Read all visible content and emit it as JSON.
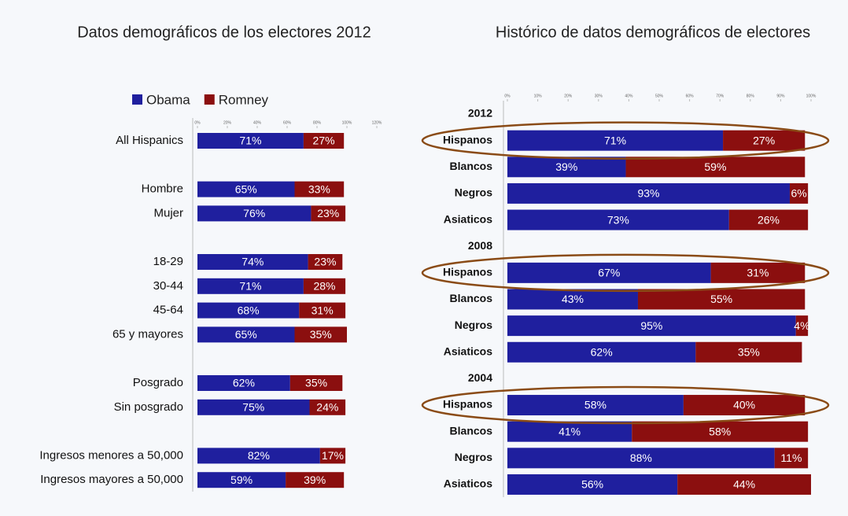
{
  "chart_data": [
    {
      "type": "stacked-barh",
      "title": "Datos demográficos de los electores 2012",
      "categories": [
        "All Hispanics",
        null,
        "Hombre",
        "Mujer",
        null,
        "18-29",
        "30-44",
        "45-64",
        "65 y mayores",
        null,
        "Posgrado",
        "Sin posgrado",
        null,
        "Ingresos menores a 50,000",
        "Ingresos mayores a 50,000"
      ],
      "series": [
        {
          "name": "Obama",
          "color": "#1f1f9e",
          "values": [
            71,
            null,
            65,
            76,
            null,
            74,
            71,
            68,
            65,
            null,
            62,
            75,
            null,
            82,
            59
          ],
          "value_labels": [
            "71%",
            null,
            "65%",
            "76%",
            null,
            "74%",
            "71%",
            "68%",
            "65%",
            null,
            "62%",
            "75%",
            null,
            "82%",
            "59%"
          ]
        },
        {
          "name": "Romney",
          "color": "#8b0f0f",
          "values": [
            27,
            null,
            33,
            23,
            null,
            23,
            28,
            31,
            35,
            null,
            35,
            24,
            null,
            17,
            39
          ],
          "value_labels": [
            "27%",
            null,
            "33%",
            "23%",
            null,
            "23%",
            "28%",
            "31%",
            "35%",
            null,
            "35%",
            "24%",
            null,
            "17%",
            "39%"
          ]
        }
      ],
      "xlim": [
        0,
        120
      ],
      "xticks": [
        {
          "value": 0,
          "label": "0%"
        },
        {
          "value": 20,
          "label": "20%"
        },
        {
          "value": 40,
          "label": "40%"
        },
        {
          "value": 60,
          "label": "60%"
        },
        {
          "value": 80,
          "label": "80%"
        },
        {
          "value": 100,
          "label": "100%"
        },
        {
          "value": 120,
          "label": "120%"
        }
      ],
      "legend": "top"
    },
    {
      "type": "stacked-barh",
      "title": "Histórico de datos demográficos de electores",
      "categories": [
        "2012",
        "Hispanos",
        "Blancos",
        "Negros",
        "Asiaticos",
        "2008",
        "Hispanos",
        "Blancos",
        "Negros",
        "Asiaticos",
        "2004",
        "Hispanos",
        "Blancos",
        "Negros",
        "Asiaticos"
      ],
      "series": [
        {
          "color": "#1f1f9e",
          "values": [
            null,
            71,
            39,
            93,
            73,
            null,
            67,
            43,
            95,
            62,
            null,
            58,
            41,
            88,
            56
          ],
          "value_labels": [
            null,
            "71%",
            "39%",
            "93%",
            "73%",
            null,
            "67%",
            "43%",
            "95%",
            "62%",
            null,
            "58%",
            "41%",
            "88%",
            "56%"
          ]
        },
        {
          "color": "#8b0f0f",
          "values": [
            null,
            27,
            59,
            6,
            26,
            null,
            31,
            55,
            4,
            35,
            null,
            40,
            58,
            11,
            44
          ],
          "value_labels": [
            null,
            "27%",
            "59%",
            "6%",
            "26%",
            null,
            "31%",
            "55%",
            "4%",
            "35%",
            null,
            "40%",
            "58%",
            "11%",
            "44%"
          ]
        }
      ],
      "xlim": [
        0,
        100
      ],
      "xticks": [
        {
          "value": 0,
          "label": "0%"
        },
        {
          "value": 10,
          "label": "10%"
        },
        {
          "value": 20,
          "label": "20%"
        },
        {
          "value": 30,
          "label": "30%"
        },
        {
          "value": 40,
          "label": "40%"
        },
        {
          "value": 50,
          "label": "50%"
        },
        {
          "value": 60,
          "label": "60%"
        },
        {
          "value": 70,
          "label": "70%"
        },
        {
          "value": 80,
          "label": "80%"
        },
        {
          "value": 90,
          "label": "90%"
        },
        {
          "value": 100,
          "label": "100%"
        }
      ]
    }
  ]
}
